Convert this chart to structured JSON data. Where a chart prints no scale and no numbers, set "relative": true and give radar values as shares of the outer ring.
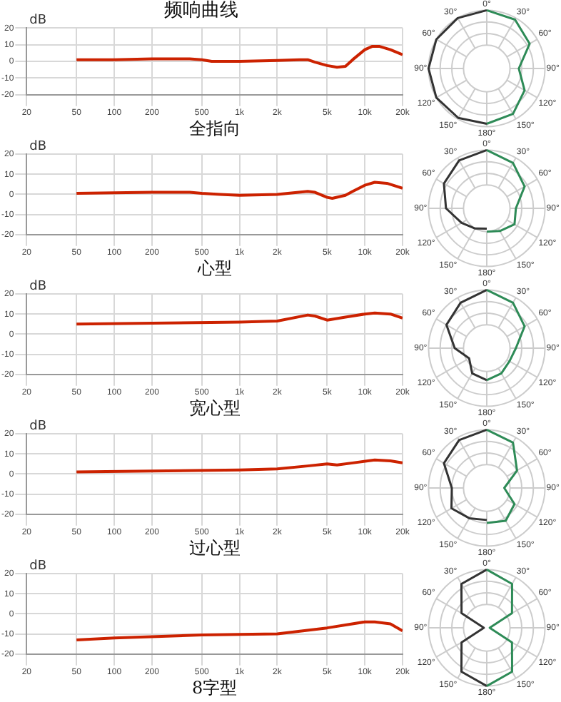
{
  "chart_data": [
    {
      "type": "line",
      "title": "频响曲线",
      "xlabel": "全指向",
      "ylabel": "dB",
      "log": "x",
      "grid": true,
      "marker": "none",
      "line_style": "solid",
      "xlim": [
        20,
        20000
      ],
      "ylim": [
        -20,
        20
      ],
      "xticks": [
        20,
        50,
        100,
        200,
        500,
        {
          "value": 1000,
          "label": "1k"
        },
        {
          "value": 2000,
          "label": "2k"
        },
        {
          "value": 5000,
          "label": "5k"
        },
        {
          "value": 10000,
          "label": "10k"
        },
        {
          "value": 20000,
          "label": "20k"
        }
      ],
      "yticks": [
        -20,
        -10,
        0,
        10,
        20
      ],
      "x": [
        50,
        100,
        200,
        400,
        500,
        600,
        1000,
        2000,
        3000,
        3500,
        4000,
        5000,
        6000,
        7000,
        8000,
        10000,
        11500,
        13000,
        16000,
        20000
      ],
      "series": [
        {
          "color": "#cc2200",
          "values": [
            1,
            1,
            1.5,
            1.5,
            1,
            0,
            0,
            0.5,
            1,
            1,
            -0.5,
            -2.5,
            -3.5,
            -3,
            1,
            7,
            9,
            9,
            7,
            4
          ]
        }
      ]
    },
    {
      "type": "radar",
      "relative": true,
      "grid": true,
      "marker": "none",
      "categories": [
        "0°",
        "30°",
        "60°",
        "90°",
        "120°",
        "150°",
        "180°",
        "150°",
        "120°",
        "90°",
        "60°",
        "30°"
      ],
      "series": [
        {
          "color": "#2e8b57",
          "values": [
            1,
            0.97,
            0.85,
            0.55,
            0.75,
            0.9,
            0.95,
            null,
            null,
            null,
            null,
            null
          ]
        },
        {
          "color": "#333333",
          "values": [
            1,
            null,
            null,
            null,
            null,
            null,
            0.95,
            0.98,
            1,
            1,
            1,
            1
          ]
        }
      ]
    },
    {
      "type": "line",
      "xlabel": "心型",
      "ylabel": "dB",
      "log": "x",
      "grid": true,
      "marker": "none",
      "line_style": "solid",
      "xlim": [
        20,
        20000
      ],
      "ylim": [
        -20,
        20
      ],
      "xticks": [
        20,
        50,
        100,
        200,
        500,
        {
          "value": 1000,
          "label": "1k"
        },
        {
          "value": 2000,
          "label": "2k"
        },
        {
          "value": 5000,
          "label": "5k"
        },
        {
          "value": 10000,
          "label": "10k"
        },
        {
          "value": 20000,
          "label": "20k"
        }
      ],
      "yticks": [
        -20,
        -10,
        0,
        10,
        20
      ],
      "x": [
        50,
        200,
        400,
        500,
        700,
        1000,
        2000,
        3500,
        4000,
        5000,
        5500,
        7000,
        8000,
        10000,
        12000,
        15000,
        20000
      ],
      "series": [
        {
          "color": "#cc2200",
          "values": [
            0.5,
            1,
            1,
            0.5,
            0,
            -0.5,
            0,
            1.5,
            1,
            -1.5,
            -2,
            -0.5,
            1.5,
            4.5,
            6,
            5.5,
            3
          ]
        }
      ]
    },
    {
      "type": "radar",
      "relative": true,
      "grid": true,
      "marker": "none",
      "categories": [
        "0°",
        "30°",
        "60°",
        "90°",
        "120°",
        "150°",
        "180°",
        "150°",
        "120°",
        "90°",
        "60°",
        "30°"
      ],
      "series": [
        {
          "color": "#2e8b57",
          "values": [
            1,
            0.9,
            0.75,
            0.5,
            0.55,
            0.45,
            0.4,
            null,
            null,
            null,
            null,
            null
          ]
        },
        {
          "color": "#333333",
          "values": [
            1,
            null,
            null,
            null,
            null,
            null,
            0.35,
            0.4,
            0.5,
            0.7,
            0.85,
            0.95
          ]
        }
      ]
    },
    {
      "type": "line",
      "xlabel": "宽心型",
      "ylabel": "dB",
      "log": "x",
      "grid": true,
      "marker": "none",
      "line_style": "solid",
      "xlim": [
        20,
        20000
      ],
      "ylim": [
        -20,
        20
      ],
      "xticks": [
        20,
        50,
        100,
        200,
        500,
        {
          "value": 1000,
          "label": "1k"
        },
        {
          "value": 2000,
          "label": "2k"
        },
        {
          "value": 5000,
          "label": "5k"
        },
        {
          "value": 10000,
          "label": "10k"
        },
        {
          "value": 20000,
          "label": "20k"
        }
      ],
      "yticks": [
        -20,
        -10,
        0,
        10,
        20
      ],
      "x": [
        50,
        200,
        1000,
        2000,
        3500,
        4000,
        5000,
        7000,
        10000,
        12000,
        16000,
        20000
      ],
      "series": [
        {
          "color": "#cc2200",
          "values": [
            5,
            5.5,
            6,
            6.5,
            9.5,
            9,
            7,
            8.5,
            10,
            10.5,
            10,
            8
          ]
        }
      ]
    },
    {
      "type": "radar",
      "relative": true,
      "grid": true,
      "marker": "none",
      "categories": [
        "0°",
        "30°",
        "60°",
        "90°",
        "120°",
        "150°",
        "180°",
        "150°",
        "120°",
        "90°",
        "60°",
        "30°"
      ],
      "series": [
        {
          "color": "#2e8b57",
          "values": [
            1,
            0.9,
            0.75,
            0.5,
            0.45,
            0.5,
            0.55,
            null,
            null,
            null,
            null,
            null
          ]
        },
        {
          "color": "#333333",
          "values": [
            1,
            null,
            null,
            null,
            null,
            null,
            0.55,
            0.5,
            0.35,
            0.55,
            0.8,
            0.9
          ]
        }
      ]
    },
    {
      "type": "line",
      "xlabel": "过心型",
      "ylabel": "dB",
      "log": "x",
      "grid": true,
      "marker": "none",
      "line_style": "solid",
      "xlim": [
        20,
        20000
      ],
      "ylim": [
        -20,
        20
      ],
      "xticks": [
        20,
        50,
        100,
        200,
        500,
        {
          "value": 1000,
          "label": "1k"
        },
        {
          "value": 2000,
          "label": "2k"
        },
        {
          "value": 5000,
          "label": "5k"
        },
        {
          "value": 10000,
          "label": "10k"
        },
        {
          "value": 20000,
          "label": "20k"
        }
      ],
      "yticks": [
        -20,
        -10,
        0,
        10,
        20
      ],
      "x": [
        50,
        200,
        1000,
        2000,
        3500,
        5000,
        6000,
        8000,
        12000,
        16000,
        20000
      ],
      "series": [
        {
          "color": "#cc2200",
          "values": [
            1,
            1.5,
            2,
            2.5,
            4,
            5,
            4.5,
            5.5,
            7,
            6.5,
            5.5
          ]
        }
      ]
    },
    {
      "type": "radar",
      "relative": true,
      "grid": true,
      "marker": "none",
      "categories": [
        "0°",
        "30°",
        "60°",
        "90°",
        "120°",
        "150°",
        "180°",
        "150°",
        "120°",
        "90°",
        "60°",
        "30°"
      ],
      "series": [
        {
          "color": "#2e8b57",
          "values": [
            1,
            0.9,
            0.6,
            0.3,
            0.55,
            0.65,
            0.6,
            null,
            null,
            null,
            null,
            null
          ]
        },
        {
          "color": "#333333",
          "values": [
            1,
            null,
            null,
            null,
            null,
            null,
            0.55,
            0.6,
            0.7,
            0.6,
            0.85,
            0.95
          ]
        }
      ]
    },
    {
      "type": "line",
      "xlabel": "8字型",
      "ylabel": "dB",
      "log": "x",
      "grid": true,
      "marker": "none",
      "line_style": "solid",
      "xlim": [
        20,
        20000
      ],
      "ylim": [
        -20,
        20
      ],
      "xticks": [
        20,
        50,
        100,
        200,
        500,
        {
          "value": 1000,
          "label": "1k"
        },
        {
          "value": 2000,
          "label": "2k"
        },
        {
          "value": 5000,
          "label": "5k"
        },
        {
          "value": 10000,
          "label": "10k"
        },
        {
          "value": 20000,
          "label": "20k"
        }
      ],
      "yticks": [
        -20,
        -10,
        0,
        10,
        20
      ],
      "x": [
        50,
        100,
        500,
        2000,
        5000,
        10000,
        12000,
        16000,
        20000
      ],
      "series": [
        {
          "color": "#cc2200",
          "values": [
            -13,
            -12,
            -10.5,
            -10,
            -7,
            -4,
            -4,
            -5,
            -8.5
          ]
        }
      ]
    },
    {
      "type": "radar",
      "relative": true,
      "grid": true,
      "marker": "none",
      "categories": [
        "0°",
        "30°",
        "60°",
        "90°",
        "120°",
        "150°",
        "180°",
        "150°",
        "120°",
        "90°",
        "60°",
        "30°"
      ],
      "series": [
        {
          "color": "#2e8b57",
          "values": [
            1,
            0.87,
            0.5,
            0.05,
            0.5,
            0.87,
            1,
            null,
            null,
            null,
            null,
            null
          ]
        },
        {
          "color": "#333333",
          "values": [
            1,
            null,
            null,
            null,
            null,
            null,
            1,
            0.87,
            0.5,
            0.05,
            0.5,
            0.87
          ]
        }
      ]
    }
  ]
}
